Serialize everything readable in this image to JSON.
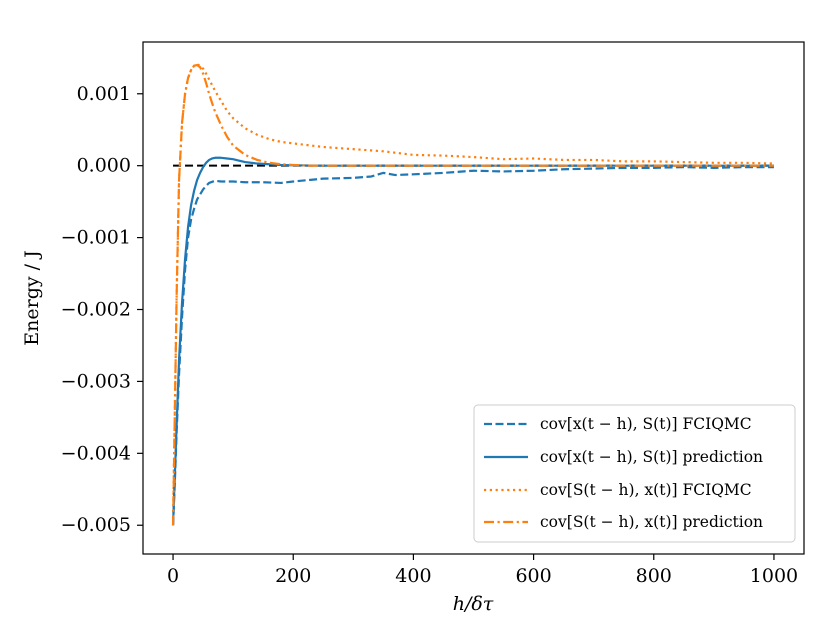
{
  "chart_data": {
    "type": "line",
    "xlabel": "h/δτ",
    "ylabel": "Energy / J",
    "xlim": [
      -50,
      1050
    ],
    "ylim": [
      -0.0054,
      0.00172
    ],
    "xticks": [
      0,
      200,
      400,
      600,
      800,
      1000
    ],
    "yticks": [
      0.001,
      0.0,
      -0.001,
      -0.002,
      -0.003,
      -0.004,
      -0.005
    ],
    "xtick_labels": [
      "0",
      "200",
      "400",
      "600",
      "800",
      "1000"
    ],
    "ytick_labels": [
      "0.001",
      "0.000",
      "−0.001",
      "−0.002",
      "−0.003",
      "−0.004",
      "−0.005"
    ],
    "grid": false,
    "legend_position": "lower-right",
    "reference_line": {
      "y": 0.0,
      "color": "#000000",
      "style": "dashed"
    },
    "series": [
      {
        "name": "cov[x(t − h), S(t)] FCIQMC",
        "color": "#1f77b4",
        "style": "dashed",
        "x": [
          0,
          3,
          6,
          10,
          15,
          20,
          25,
          30,
          35,
          40,
          45,
          50,
          55,
          60,
          70,
          80,
          90,
          100,
          120,
          150,
          180,
          200,
          250,
          300,
          330,
          350,
          370,
          400,
          450,
          500,
          550,
          600,
          650,
          700,
          750,
          800,
          850,
          900,
          950,
          1000
        ],
        "y": [
          -0.005,
          -0.0044,
          -0.0037,
          -0.0029,
          -0.0021,
          -0.00145,
          -0.001,
          -0.00075,
          -0.0006,
          -0.00047,
          -0.0004,
          -0.00033,
          -0.00028,
          -0.00024,
          -0.00021,
          -0.00022,
          -0.00022,
          -0.00022,
          -0.00023,
          -0.00023,
          -0.00024,
          -0.00022,
          -0.00018,
          -0.00017,
          -0.00015,
          -0.0001,
          -0.00013,
          -0.00012,
          -0.0001,
          -7e-05,
          -8e-05,
          -7e-05,
          -5e-05,
          -4e-05,
          -3e-05,
          -3e-05,
          -2e-05,
          -3e-05,
          -2e-05,
          -2e-05
        ]
      },
      {
        "name": "cov[x(t − h), S(t)] prediction",
        "color": "#1f77b4",
        "style": "solid",
        "x": [
          0,
          3,
          6,
          10,
          15,
          20,
          25,
          30,
          35,
          40,
          45,
          50,
          55,
          60,
          65,
          70,
          80,
          90,
          100,
          110,
          120,
          140,
          160,
          180,
          200,
          250,
          300,
          400,
          500,
          600,
          700,
          800,
          900,
          1000
        ],
        "y": [
          -0.005,
          -0.0043,
          -0.0036,
          -0.0027,
          -0.0019,
          -0.0013,
          -0.00085,
          -0.00055,
          -0.00035,
          -0.0002,
          -0.0001,
          -2e-05,
          4e-05,
          8e-05,
          0.0001,
          0.00011,
          0.00011,
          0.0001,
          9e-05,
          7e-05,
          5e-05,
          3e-05,
          2e-05,
          1e-05,
          5e-06,
          0.0,
          0.0,
          0.0,
          0.0,
          0.0,
          0.0,
          0.0,
          0.0,
          0.0
        ]
      },
      {
        "name": "cov[S(t − h), x(t)] FCIQMC",
        "color": "#ff7f0e",
        "style": "dotted",
        "x": [
          0,
          3,
          6,
          10,
          15,
          20,
          25,
          30,
          35,
          40,
          45,
          50,
          55,
          60,
          70,
          80,
          90,
          100,
          120,
          140,
          160,
          180,
          200,
          250,
          300,
          350,
          400,
          450,
          500,
          550,
          600,
          650,
          700,
          750,
          800,
          850,
          900,
          950,
          1000
        ],
        "y": [
          -0.0049,
          -0.0034,
          -0.0018,
          -0.0002,
          0.0006,
          0.001,
          0.00122,
          0.00133,
          0.00139,
          0.00141,
          0.00139,
          0.00135,
          0.00128,
          0.0012,
          0.00104,
          0.0009,
          0.00076,
          0.00066,
          0.00052,
          0.00043,
          0.00037,
          0.00033,
          0.00031,
          0.00026,
          0.00023,
          0.0002,
          0.00015,
          0.00014,
          0.00012,
          9e-05,
          0.0001,
          8e-05,
          8e-05,
          6e-05,
          6e-05,
          5e-05,
          4e-05,
          4e-05,
          3e-05
        ]
      },
      {
        "name": "cov[S(t − h), x(t)] prediction",
        "color": "#ff7f0e",
        "style": "dashdot",
        "x": [
          0,
          3,
          6,
          10,
          15,
          20,
          25,
          30,
          35,
          40,
          45,
          50,
          55,
          60,
          65,
          70,
          80,
          90,
          100,
          120,
          140,
          160,
          180,
          200,
          230,
          260,
          300,
          400,
          500,
          600,
          700,
          800,
          900,
          1000
        ],
        "y": [
          -0.005,
          -0.0034,
          -0.0018,
          -0.0002,
          0.0006,
          0.001,
          0.00122,
          0.00133,
          0.00139,
          0.0014,
          0.00137,
          0.00128,
          0.00115,
          0.001,
          0.00087,
          0.00075,
          0.00056,
          0.0004,
          0.00028,
          0.00015,
          8e-05,
          4e-05,
          2e-05,
          1e-05,
          0.0,
          0.0,
          0.0,
          0.0,
          0.0,
          0.0,
          0.0,
          0.0,
          0.0,
          0.0
        ]
      }
    ]
  }
}
